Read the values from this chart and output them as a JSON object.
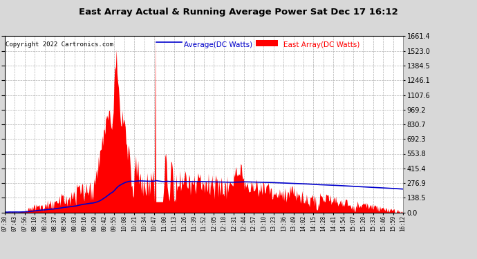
{
  "title": "East Array Actual & Running Average Power Sat Dec 17 16:12",
  "copyright": "Copyright 2022 Cartronics.com",
  "legend_avg": "Average(DC Watts)",
  "legend_east": "East Array(DC Watts)",
  "yticks": [
    0.0,
    138.5,
    276.9,
    415.4,
    553.8,
    692.3,
    830.7,
    969.2,
    1107.6,
    1246.1,
    1384.5,
    1523.0,
    1661.4
  ],
  "ymax": 1661.4,
  "ymin": 0.0,
  "bg_color": "#d8d8d8",
  "plot_bg_color": "#ffffff",
  "grid_color": "#b0b0b0",
  "east_color": "#ff0000",
  "avg_color": "#0000cc",
  "title_color": "#000000",
  "copyright_color": "#000000",
  "xtick_labels": [
    "07:30",
    "07:43",
    "07:56",
    "08:10",
    "08:24",
    "08:37",
    "08:50",
    "09:03",
    "09:16",
    "09:29",
    "09:42",
    "09:55",
    "10:08",
    "10:21",
    "10:34",
    "10:47",
    "11:00",
    "11:13",
    "11:26",
    "11:39",
    "11:52",
    "12:05",
    "12:18",
    "12:31",
    "12:44",
    "12:57",
    "13:10",
    "13:23",
    "13:36",
    "13:49",
    "14:02",
    "14:15",
    "14:28",
    "14:41",
    "14:54",
    "15:07",
    "15:20",
    "15:33",
    "15:46",
    "15:59",
    "16:12"
  ],
  "num_points": 533
}
